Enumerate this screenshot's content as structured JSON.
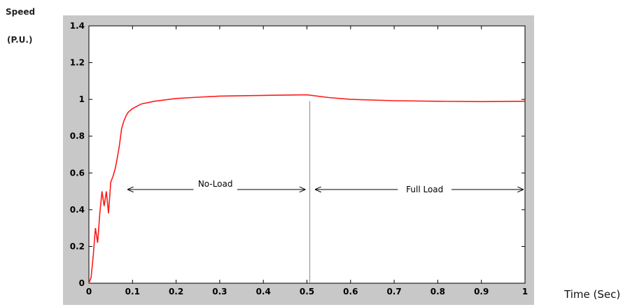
{
  "chart_data": {
    "type": "line",
    "ylabel_lines": [
      "Speed",
      "(P.U.)"
    ],
    "xlabel": "Time (Sec)",
    "xlim": [
      0,
      1
    ],
    "ylim": [
      0,
      1.4
    ],
    "x_ticks": [
      0,
      0.1,
      0.2,
      0.3,
      0.4,
      0.5,
      0.6,
      0.7,
      0.8,
      0.9,
      1
    ],
    "x_tick_labels": [
      "0",
      "0.1",
      "0.2",
      "0.3",
      "0.4",
      "0.5",
      "0.6",
      "0.7",
      "0.8",
      "0.9",
      "1"
    ],
    "y_ticks": [
      0,
      0.2,
      0.4,
      0.6,
      0.8,
      1,
      1.2,
      1.4
    ],
    "y_tick_labels": [
      "0",
      "0.2",
      "0.4",
      "0.6",
      "0.8",
      "1",
      "1.2",
      "1.4"
    ],
    "grid": false,
    "series": [
      {
        "color": "#ff1a1a",
        "x": [
          0,
          0.005,
          0.01,
          0.015,
          0.02,
          0.025,
          0.03,
          0.035,
          0.04,
          0.045,
          0.05,
          0.055,
          0.06,
          0.065,
          0.07,
          0.075,
          0.08,
          0.085,
          0.09,
          0.1,
          0.12,
          0.15,
          0.2,
          0.25,
          0.3,
          0.4,
          0.5,
          0.55,
          0.6,
          0.7,
          0.8,
          0.9,
          1.0
        ],
        "y": [
          0,
          0.03,
          0.15,
          0.3,
          0.22,
          0.38,
          0.5,
          0.42,
          0.5,
          0.38,
          0.55,
          0.58,
          0.62,
          0.68,
          0.75,
          0.84,
          0.88,
          0.91,
          0.93,
          0.95,
          0.975,
          0.99,
          1.005,
          1.012,
          1.018,
          1.022,
          1.025,
          1.01,
          1.0,
          0.993,
          0.99,
          0.988,
          0.99
        ]
      }
    ],
    "marker_line": {
      "x": 0.5,
      "y_top": 0.99,
      "color": "#9a9a9a"
    },
    "annotations": [
      {
        "text": "No-Load",
        "x": 0.29,
        "y": 0.54,
        "arrow_from": 0.09,
        "arrow_to": 0.495,
        "arrow_y": 0.51
      },
      {
        "text": "Full Load",
        "x": 0.77,
        "y": 0.51,
        "arrow_from": 0.52,
        "arrow_to": 0.995,
        "arrow_y": 0.51
      }
    ],
    "colors": {
      "frame_bg": "#c8c8c8",
      "plot_bg": "#ffffff",
      "axis": "#000000"
    }
  }
}
